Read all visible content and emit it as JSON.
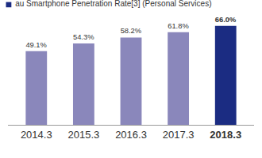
{
  "chart_data": {
    "type": "bar",
    "title": "au Smartphone Penetration Rate[3] (Personal Services)",
    "categories": [
      "2014.3",
      "2015.3",
      "2016.3",
      "2017.3",
      "2018.3"
    ],
    "values": [
      49.1,
      54.3,
      58.2,
      61.8,
      66.0
    ],
    "value_labels": [
      "49.1%",
      "54.3%",
      "58.2%",
      "61.8%",
      "66.0%"
    ],
    "colors": [
      "#8a87bb",
      "#8a87bb",
      "#8a87bb",
      "#8a87bb",
      "#1b2c82"
    ],
    "ylim": [
      0,
      78
    ],
    "grid": false,
    "data_labels": true,
    "tick_labels": "x"
  }
}
